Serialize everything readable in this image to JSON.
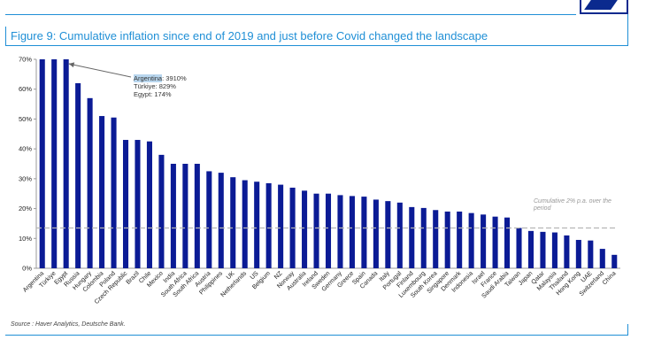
{
  "header": {
    "title": "Figure 9: Cumulative inflation since end of 2019 and just before Covid changed the landscape"
  },
  "footer": {
    "source": "Source : Haver Analytics, Deutsche Bank."
  },
  "annotations": {
    "callout": {
      "line1_name": "Argentina",
      "line1_rest": ": 3910%",
      "line2": "Türkiye: 829%",
      "line3": "Egypt: 174%"
    },
    "reference_label_1": "Cumulative 2% p.a. over the",
    "reference_label_2": "period"
  },
  "colors": {
    "bar": "#0b1b95",
    "reference_line": "#b5b5b5",
    "title": "#1f8fd6",
    "axis": "#999999",
    "tick_text": "#222222"
  },
  "chart_data": {
    "type": "bar",
    "title": "Cumulative inflation since end of 2019",
    "xlabel": "",
    "ylabel": "",
    "ylim": [
      0,
      70
    ],
    "yticks": [
      "0%",
      "10%",
      "20%",
      "30%",
      "40%",
      "50%",
      "60%",
      "70%"
    ],
    "grid": false,
    "categories": [
      "Argentina",
      "Türkiye",
      "Egypt",
      "Russia",
      "Hungary",
      "Colombia",
      "Poland",
      "Czech Republic",
      "Brazil",
      "Chile",
      "Mexico",
      "India",
      "South Africa",
      "South Africa",
      "Austria",
      "Philippines",
      "UK",
      "Netherlands",
      "US",
      "Belgium",
      "NZ",
      "Norway",
      "Australia",
      "Ireland",
      "Sweden",
      "Germany",
      "Greece",
      "Spain",
      "Canada",
      "Italy",
      "Portugal",
      "Finland",
      "Luxembourg",
      "South Korea",
      "Singapore",
      "Denmark",
      "Indonesia",
      "Israel",
      "France",
      "Saudi Arabia",
      "Taiwan",
      "Japan",
      "Qatar",
      "Malaysia",
      "Thailand",
      "Hong Kong",
      "UAE",
      "Switzerland",
      "China"
    ],
    "values": [
      70,
      70,
      70,
      62,
      57,
      51,
      50.5,
      43,
      43,
      42.5,
      38,
      35,
      35,
      35,
      32.5,
      32,
      30.5,
      29.5,
      29,
      28.5,
      28,
      27,
      26,
      25,
      25,
      24.5,
      24.2,
      24,
      23,
      22.5,
      22,
      20.5,
      20.2,
      19.5,
      19,
      19,
      18.5,
      18,
      17.3,
      17,
      13.5,
      12.5,
      12.2,
      12,
      11,
      9.5,
      9.3,
      6.5,
      4.5
    ],
    "reference_line": {
      "value": 13.5,
      "label": "Cumulative 2% p.a. over the period"
    }
  }
}
